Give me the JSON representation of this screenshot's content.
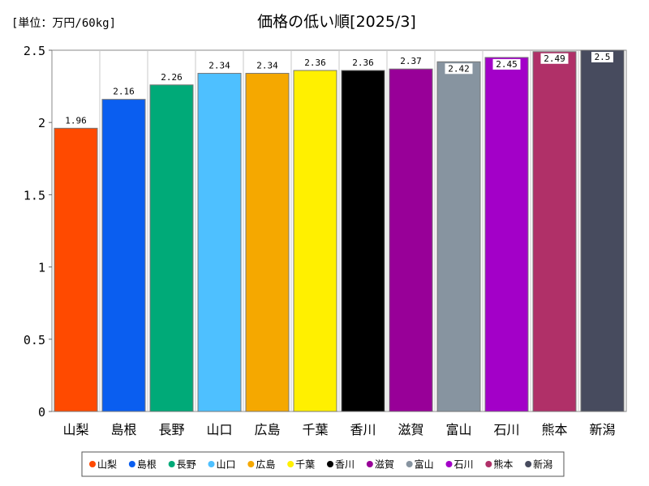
{
  "unit": "[単位：万円/60kg]",
  "title": "価格の低い順[2025/3]",
  "chart_data": {
    "type": "bar",
    "title": "価格の低い順[2025/3]",
    "unit": "[単位：万円/60kg]",
    "categories": [
      "山梨",
      "島根",
      "長野",
      "山口",
      "広島",
      "千葉",
      "香川",
      "滋賀",
      "富山",
      "石川",
      "熊本",
      "新潟"
    ],
    "values": [
      1.96,
      2.16,
      2.26,
      2.34,
      2.34,
      2.36,
      2.36,
      2.37,
      2.42,
      2.45,
      2.49,
      2.5
    ],
    "value_labels": [
      "1.96",
      "2.16",
      "2.26",
      "2.34",
      "2.34",
      "2.36",
      "2.36",
      "2.37",
      "2.42",
      "2.45",
      "2.49",
      "2.5"
    ],
    "colors": [
      "#ff4a00",
      "#0a5ef0",
      "#00aa78",
      "#4ec0ff",
      "#f5a800",
      "#fff000",
      "#000000",
      "#980098",
      "#8794a0",
      "#a300c8",
      "#b03068",
      "#474b5e"
    ],
    "ylim": [
      0,
      2.5
    ],
    "yticks": [
      0,
      0.5,
      1,
      1.5,
      2,
      2.5
    ],
    "ytick_labels": [
      "0",
      "0.5",
      "1",
      "1.5",
      "2",
      "2.5"
    ],
    "grid": true,
    "legend": "bottom",
    "xlabel": "",
    "ylabel": ""
  }
}
